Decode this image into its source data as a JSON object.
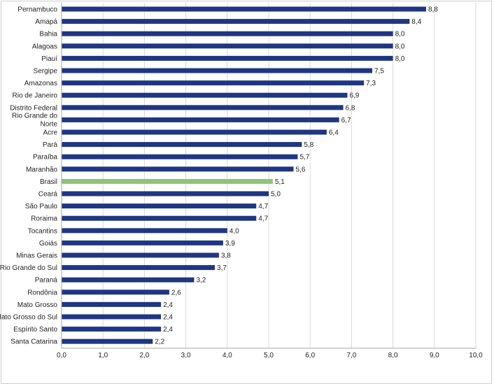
{
  "chart_data": {
    "type": "bar",
    "orientation": "horizontal",
    "categories": [
      [
        "Pernambuco"
      ],
      [
        "Amapá"
      ],
      [
        "Bahia"
      ],
      [
        "Alagoas"
      ],
      [
        "Piauí"
      ],
      [
        "Sergipe"
      ],
      [
        "Amazonas"
      ],
      [
        "Rio de Janeiro"
      ],
      [
        "Distrito Federal"
      ],
      [
        "Rio Grande do",
        "Norte"
      ],
      [
        "Acre"
      ],
      [
        "Pará"
      ],
      [
        "Paraíba"
      ],
      [
        "Maranhão"
      ],
      [
        "Brasil"
      ],
      [
        "Ceará"
      ],
      [
        "São Paulo"
      ],
      [
        "Roraima"
      ],
      [
        "Tocantins"
      ],
      [
        "Goiás"
      ],
      [
        "Minas Gerais"
      ],
      [
        "Rio Grande do Sul"
      ],
      [
        "Paraná"
      ],
      [
        "Rondônia"
      ],
      [
        "Mato Grosso"
      ],
      [
        "Mato Grosso do Sul"
      ],
      [
        "Espírito Santo"
      ],
      [
        "Santa Catarina"
      ]
    ],
    "values": [
      8.8,
      8.4,
      8.0,
      8.0,
      8.0,
      7.5,
      7.3,
      6.9,
      6.8,
      6.7,
      6.4,
      5.8,
      5.7,
      5.6,
      5.1,
      5.0,
      4.7,
      4.7,
      4.0,
      3.9,
      3.8,
      3.7,
      3.2,
      2.6,
      2.4,
      2.4,
      2.4,
      2.2
    ],
    "value_labels": [
      "8,8",
      "8,4",
      "8,0",
      "8,0",
      "8,0",
      "7,5",
      "7,3",
      "6,9",
      "6,8",
      "6,7",
      "6,4",
      "5,8",
      "5,7",
      "5,6",
      "5,1",
      "5,0",
      "4,7",
      "4,7",
      "4,0",
      "3,9",
      "3,8",
      "3,7",
      "3,2",
      "2,6",
      "2,4",
      "2,4",
      "2,4",
      "2,2"
    ],
    "highlight_category": "Brasil",
    "xlim": [
      0,
      10
    ],
    "xticks": [
      0,
      1,
      2,
      3,
      4,
      5,
      6,
      7,
      8,
      9,
      10
    ],
    "xtick_labels": [
      "0,0",
      "1,0",
      "2,0",
      "3,0",
      "4,0",
      "5,0",
      "6,0",
      "7,0",
      "8,0",
      "9,0",
      "10,0"
    ],
    "grid": true,
    "colors": {
      "bar": "#1f3683",
      "highlight": "#8cc47a",
      "grid": "#d9d9d9",
      "axis": "#a6a6a6"
    },
    "title": "",
    "xlabel": "",
    "ylabel": ""
  }
}
